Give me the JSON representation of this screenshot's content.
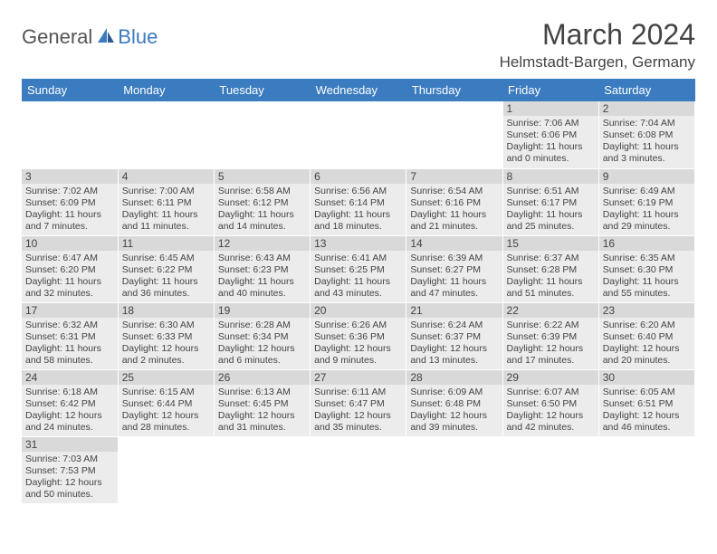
{
  "logo": {
    "text1": "General",
    "text2": "Blue"
  },
  "title": "March 2024",
  "location": "Helmstadt-Bargen, Germany",
  "colors": {
    "header_bg": "#3b7bbf",
    "header_text": "#ffffff",
    "cell_bg": "#ececec",
    "daynum_bg": "#d9d9d9",
    "page_bg": "#ffffff",
    "text": "#444444"
  },
  "weekdays": [
    "Sunday",
    "Monday",
    "Tuesday",
    "Wednesday",
    "Thursday",
    "Friday",
    "Saturday"
  ],
  "weeks": [
    [
      null,
      null,
      null,
      null,
      null,
      {
        "n": "1",
        "sr": "7:06 AM",
        "ss": "6:06 PM",
        "dl": "11 hours and 0 minutes."
      },
      {
        "n": "2",
        "sr": "7:04 AM",
        "ss": "6:08 PM",
        "dl": "11 hours and 3 minutes."
      }
    ],
    [
      {
        "n": "3",
        "sr": "7:02 AM",
        "ss": "6:09 PM",
        "dl": "11 hours and 7 minutes."
      },
      {
        "n": "4",
        "sr": "7:00 AM",
        "ss": "6:11 PM",
        "dl": "11 hours and 11 minutes."
      },
      {
        "n": "5",
        "sr": "6:58 AM",
        "ss": "6:12 PM",
        "dl": "11 hours and 14 minutes."
      },
      {
        "n": "6",
        "sr": "6:56 AM",
        "ss": "6:14 PM",
        "dl": "11 hours and 18 minutes."
      },
      {
        "n": "7",
        "sr": "6:54 AM",
        "ss": "6:16 PM",
        "dl": "11 hours and 21 minutes."
      },
      {
        "n": "8",
        "sr": "6:51 AM",
        "ss": "6:17 PM",
        "dl": "11 hours and 25 minutes."
      },
      {
        "n": "9",
        "sr": "6:49 AM",
        "ss": "6:19 PM",
        "dl": "11 hours and 29 minutes."
      }
    ],
    [
      {
        "n": "10",
        "sr": "6:47 AM",
        "ss": "6:20 PM",
        "dl": "11 hours and 32 minutes."
      },
      {
        "n": "11",
        "sr": "6:45 AM",
        "ss": "6:22 PM",
        "dl": "11 hours and 36 minutes."
      },
      {
        "n": "12",
        "sr": "6:43 AM",
        "ss": "6:23 PM",
        "dl": "11 hours and 40 minutes."
      },
      {
        "n": "13",
        "sr": "6:41 AM",
        "ss": "6:25 PM",
        "dl": "11 hours and 43 minutes."
      },
      {
        "n": "14",
        "sr": "6:39 AM",
        "ss": "6:27 PM",
        "dl": "11 hours and 47 minutes."
      },
      {
        "n": "15",
        "sr": "6:37 AM",
        "ss": "6:28 PM",
        "dl": "11 hours and 51 minutes."
      },
      {
        "n": "16",
        "sr": "6:35 AM",
        "ss": "6:30 PM",
        "dl": "11 hours and 55 minutes."
      }
    ],
    [
      {
        "n": "17",
        "sr": "6:32 AM",
        "ss": "6:31 PM",
        "dl": "11 hours and 58 minutes."
      },
      {
        "n": "18",
        "sr": "6:30 AM",
        "ss": "6:33 PM",
        "dl": "12 hours and 2 minutes."
      },
      {
        "n": "19",
        "sr": "6:28 AM",
        "ss": "6:34 PM",
        "dl": "12 hours and 6 minutes."
      },
      {
        "n": "20",
        "sr": "6:26 AM",
        "ss": "6:36 PM",
        "dl": "12 hours and 9 minutes."
      },
      {
        "n": "21",
        "sr": "6:24 AM",
        "ss": "6:37 PM",
        "dl": "12 hours and 13 minutes."
      },
      {
        "n": "22",
        "sr": "6:22 AM",
        "ss": "6:39 PM",
        "dl": "12 hours and 17 minutes."
      },
      {
        "n": "23",
        "sr": "6:20 AM",
        "ss": "6:40 PM",
        "dl": "12 hours and 20 minutes."
      }
    ],
    [
      {
        "n": "24",
        "sr": "6:18 AM",
        "ss": "6:42 PM",
        "dl": "12 hours and 24 minutes."
      },
      {
        "n": "25",
        "sr": "6:15 AM",
        "ss": "6:44 PM",
        "dl": "12 hours and 28 minutes."
      },
      {
        "n": "26",
        "sr": "6:13 AM",
        "ss": "6:45 PM",
        "dl": "12 hours and 31 minutes."
      },
      {
        "n": "27",
        "sr": "6:11 AM",
        "ss": "6:47 PM",
        "dl": "12 hours and 35 minutes."
      },
      {
        "n": "28",
        "sr": "6:09 AM",
        "ss": "6:48 PM",
        "dl": "12 hours and 39 minutes."
      },
      {
        "n": "29",
        "sr": "6:07 AM",
        "ss": "6:50 PM",
        "dl": "12 hours and 42 minutes."
      },
      {
        "n": "30",
        "sr": "6:05 AM",
        "ss": "6:51 PM",
        "dl": "12 hours and 46 minutes."
      }
    ],
    [
      {
        "n": "31",
        "sr": "7:03 AM",
        "ss": "7:53 PM",
        "dl": "12 hours and 50 minutes."
      },
      null,
      null,
      null,
      null,
      null,
      null
    ]
  ],
  "labels": {
    "sunrise": "Sunrise:",
    "sunset": "Sunset:",
    "daylight": "Daylight:"
  }
}
